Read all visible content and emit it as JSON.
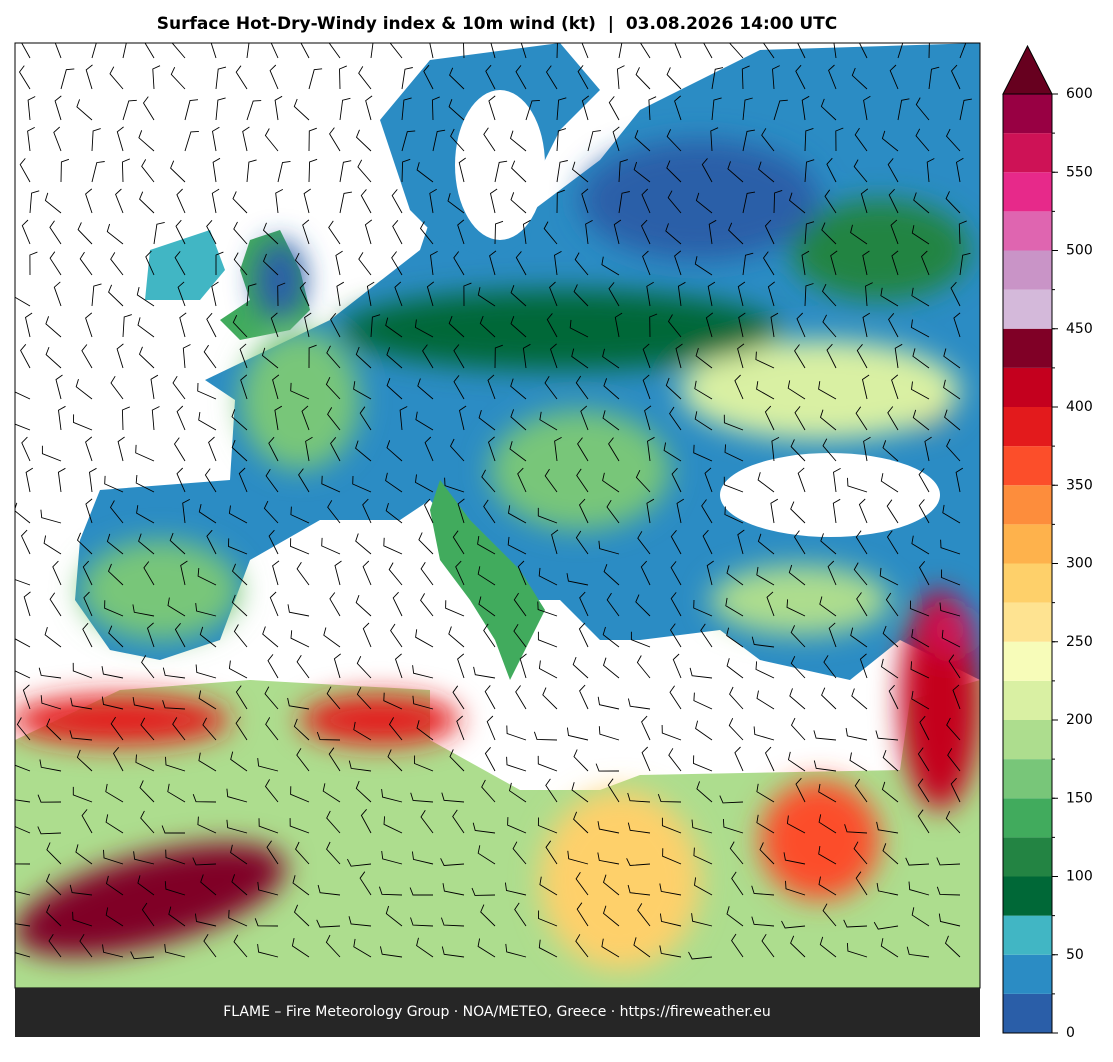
{
  "header": {
    "title": "Surface Hot-Dry-Windy index & 10m wind (kt)  |  03.08.2026 14:00 UTC"
  },
  "footer": {
    "text": "FLAME – Fire Meteorology Group · NOA/METEO, Greece · https://fireweather.eu"
  },
  "colorbar": {
    "lim": [
      0,
      600
    ],
    "ticks": [
      0,
      50,
      100,
      150,
      200,
      250,
      300,
      350,
      400,
      450,
      500,
      550,
      600
    ],
    "bounds": [
      0,
      25,
      50,
      75,
      100,
      125,
      150,
      175,
      200,
      225,
      250,
      275,
      300,
      325,
      350,
      375,
      400,
      425,
      450,
      475,
      500,
      525,
      550,
      575,
      600
    ],
    "colors": [
      "#2a5ea8",
      "#2b8cc4",
      "#41b6c4",
      "#006837",
      "#238443",
      "#41ab5d",
      "#78c679",
      "#addd8e",
      "#d9f0a3",
      "#f7fcb9",
      "#fee391",
      "#fed06a",
      "#feb24c",
      "#fd8d3c",
      "#fc4e2a",
      "#e31a1c",
      "#c4001e",
      "#800026",
      "#d4b9da",
      "#c994c7",
      "#df65b0",
      "#e7298a",
      "#ce1256",
      "#980043"
    ],
    "extend_color": "#67001f"
  }
}
